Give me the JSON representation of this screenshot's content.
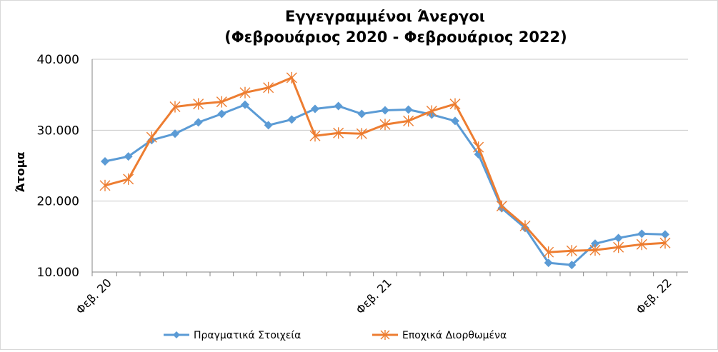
{
  "chart_data": {
    "type": "line",
    "title": "Εγγεγραμμένοι Άνεργοι",
    "subtitle": "(Φεβρουάριος 2020 - Φεβρουάριος 2022)",
    "xlabel": "",
    "ylabel": "Άτομα",
    "ylim": [
      10000,
      40000
    ],
    "yticks": [
      10000,
      20000,
      30000,
      40000
    ],
    "ytick_labels": [
      "10.000",
      "20.000",
      "30.000",
      "40.000"
    ],
    "x_tick_labels": [
      {
        "index": 0,
        "label": "Φεβ. 20"
      },
      {
        "index": 12,
        "label": "Φεβ. 21"
      },
      {
        "index": 24,
        "label": "Φεβ. 22"
      }
    ],
    "grid": "horizontal",
    "legend_position": "bottom",
    "series": [
      {
        "name": "Πραγματικά Στοιχεία",
        "color": "#5b9bd5",
        "marker": "diamond",
        "values": [
          25600,
          26300,
          28600,
          29500,
          31100,
          32300,
          33600,
          30700,
          31500,
          33000,
          33400,
          32300,
          32800,
          32900,
          32200,
          31300,
          26600,
          19000,
          16200,
          11300,
          11000,
          14000,
          14800,
          15400,
          15300
        ]
      },
      {
        "name": "Εποχικά Διορθωμένα",
        "color": "#ed7d31",
        "marker": "star",
        "values": [
          22200,
          23100,
          29000,
          33300,
          33700,
          34000,
          35300,
          36000,
          37400,
          29200,
          29600,
          29500,
          30800,
          31300,
          32700,
          33700,
          27600,
          19300,
          16500,
          12800,
          13000,
          13100,
          13500,
          13900,
          14100
        ]
      }
    ]
  }
}
